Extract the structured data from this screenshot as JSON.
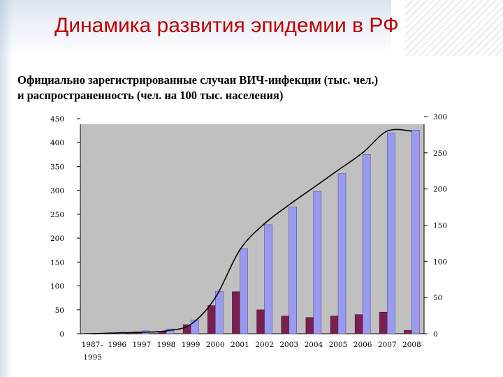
{
  "slide": {
    "title": "Динамика развития эпидемии в РФ",
    "heading_line1": "Официально зарегистрированные случаи ВИЧ-инфекции (тыс. чел.)",
    "heading_line2": "и распространенность (чел. на 100 тыс. населения)"
  },
  "colors": {
    "title": "#c00000",
    "plot_background": "#c0c0c0",
    "new_cases_bar": "#7b1f4f",
    "cumulative_bar": "#9a9af0",
    "prevalence_line": "#000000"
  },
  "chart_data": {
    "type": "bar",
    "title": "",
    "categories": [
      "1987–\n1995",
      "1996",
      "1997",
      "1998",
      "1999",
      "2000",
      "2001",
      "2002",
      "2003",
      "2004",
      "2005",
      "2006",
      "2007",
      "2008"
    ],
    "left_axis": {
      "ticks": [
        0,
        50,
        100,
        150,
        200,
        250,
        300,
        350,
        400,
        450
      ],
      "range": [
        0,
        450
      ]
    },
    "right_axis": {
      "ticks": [
        0,
        50,
        100,
        150,
        200,
        250,
        300
      ],
      "range": [
        0,
        300
      ]
    },
    "series": [
      {
        "kind": "bar",
        "axis": "left",
        "values": [
          1,
          2,
          4,
          4,
          19,
          59,
          88,
          50,
          37,
          34,
          37,
          40,
          45,
          7
        ]
      },
      {
        "kind": "bar",
        "axis": "left",
        "values": [
          1,
          3,
          6,
          10,
          29,
          89,
          178,
          228,
          265,
          298,
          335,
          375,
          420,
          426
        ]
      },
      {
        "kind": "line",
        "axis": "right",
        "values": [
          0,
          1,
          2,
          4,
          13,
          50,
          116,
          152,
          178,
          202,
          226,
          250,
          280,
          280
        ]
      }
    ],
    "grid": false,
    "legend": "none"
  }
}
